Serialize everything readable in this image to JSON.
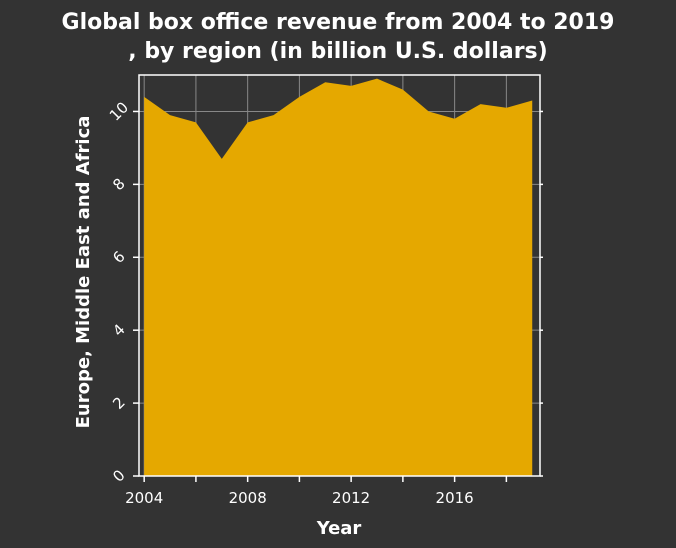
{
  "chart_data": {
    "type": "area",
    "title_lines": [
      "Global box office revenue from 2004 to 2019",
      ", by region (in billion U.S. dollars)"
    ],
    "xlabel": "Year",
    "ylabel": "Europe, Middle East and Africa",
    "x": [
      2004,
      2005,
      2006,
      2007,
      2008,
      2009,
      2010,
      2011,
      2012,
      2013,
      2014,
      2015,
      2016,
      2017,
      2018,
      2019
    ],
    "series": [
      {
        "values": [
          10.4,
          9.9,
          9.7,
          8.7,
          9.7,
          9.9,
          10.4,
          10.8,
          10.7,
          10.9,
          10.6,
          10.0,
          9.8,
          10.2,
          10.1,
          10.3
        ]
      }
    ],
    "xlim": [
      2003.8,
      2019.3
    ],
    "ylim": [
      0,
      11
    ],
    "xticks": [
      2004,
      2008,
      2012,
      2016
    ],
    "xtick_labels": [
      "2004",
      "2008",
      "2012",
      "2016"
    ],
    "yticks": [
      0,
      2,
      4,
      6,
      8,
      10
    ],
    "ytick_labels": [
      "0",
      "2",
      "4",
      "6",
      "8",
      "10"
    ],
    "grid": true,
    "colors": {
      "background": "#333333",
      "fill": "#e5a800",
      "grid": "#888888",
      "text": "#ffffff"
    }
  }
}
